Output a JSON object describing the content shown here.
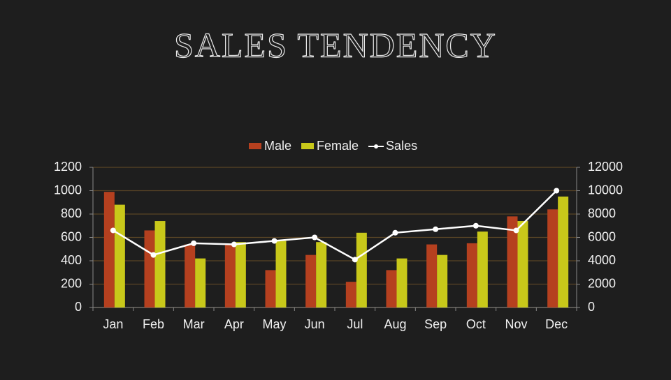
{
  "chart_data": {
    "type": "bar-line",
    "title": "SALES TENDENCY",
    "categories": [
      "Jan",
      "Feb",
      "Mar",
      "Apr",
      "May",
      "Jun",
      "Jul",
      "Aug",
      "Sep",
      "Oct",
      "Nov",
      "Dec"
    ],
    "series": [
      {
        "name": "Male",
        "color": "#b5401f",
        "type": "bar",
        "values": [
          990,
          660,
          540,
          540,
          320,
          450,
          220,
          320,
          540,
          550,
          780,
          840
        ]
      },
      {
        "name": "Female",
        "color": "#c8c81a",
        "type": "bar",
        "values": [
          880,
          740,
          420,
          560,
          570,
          560,
          640,
          420,
          450,
          650,
          740,
          950
        ]
      },
      {
        "name": "Sales",
        "color": "#ffffff",
        "type": "line",
        "axis": "y2",
        "values": [
          6600,
          4500,
          5500,
          5400,
          5700,
          6000,
          4100,
          6400,
          6700,
          7000,
          6600,
          10000
        ]
      }
    ],
    "ylim": [
      0,
      1200
    ],
    "yticks": [
      0,
      200,
      400,
      600,
      800,
      1000,
      1200
    ],
    "y2lim": [
      0,
      12000
    ],
    "y2ticks": [
      0,
      2000,
      4000,
      6000,
      8000,
      10000,
      12000
    ],
    "grid": true,
    "legend": "top"
  }
}
